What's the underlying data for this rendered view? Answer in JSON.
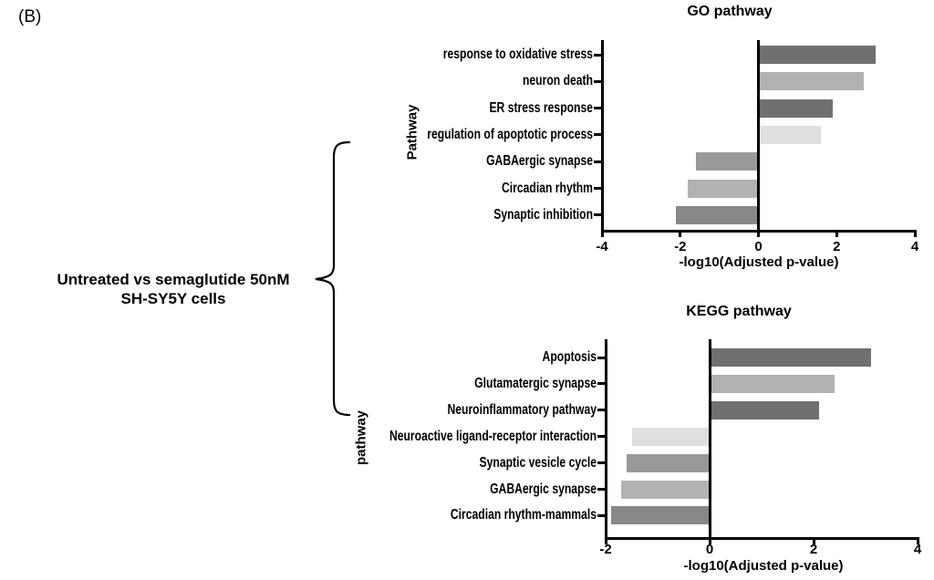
{
  "figure": {
    "panel_label": "(B)",
    "group_label_line1": "Untreated vs semaglutide 50nM",
    "group_label_line2": "SH-SY5Y cells"
  },
  "colors": {
    "axis": "#000000",
    "background": "#ffffff",
    "bar_dark": "#707070",
    "bar_light": "#b2b2b2",
    "bar_very_light": "#dfdfdf",
    "bar_mid": "#999999",
    "bar_mid_dark": "#888888"
  },
  "chart_data": [
    {
      "type": "bar",
      "orientation": "horizontal",
      "title": "GO pathway",
      "xlabel": "-log10(Adjusted p-value)",
      "ylabel": "Pathway",
      "xlim": [
        -4,
        4
      ],
      "xticks": [
        -4,
        -2,
        0,
        2,
        4
      ],
      "xtick_labels": [
        "-4",
        "-2",
        "0",
        "2",
        "4"
      ],
      "grid": false,
      "legend": "none",
      "categories": [
        "response to oxidative stress",
        "neuron death",
        "ER stress response",
        "regulation of apoptotic process",
        "GABAergic synapse",
        "Circadian rhythm",
        "Synaptic inhibition"
      ],
      "values": [
        3.0,
        2.7,
        1.9,
        1.6,
        -1.6,
        -1.8,
        -2.1
      ],
      "bar_colors": [
        "#707070",
        "#b2b2b2",
        "#707070",
        "#dfdfdf",
        "#999999",
        "#b2b2b2",
        "#888888"
      ]
    },
    {
      "type": "bar",
      "orientation": "horizontal",
      "title": "KEGG pathway",
      "xlabel": "-log10(Adjusted p-value)",
      "ylabel": "pathway",
      "xlim": [
        -2,
        4
      ],
      "xticks": [
        -2,
        0,
        2,
        4
      ],
      "xtick_labels": [
        "-2",
        "0",
        "2",
        "4"
      ],
      "grid": false,
      "legend": "none",
      "categories": [
        "Apoptosis",
        "Glutamatergic synapse",
        "Neuroinflammatory pathway",
        "Neuroactive ligand-receptor interaction",
        "Synaptic vesicle cycle",
        "GABAergic synapse",
        "Circadian rhythm-mammals"
      ],
      "values": [
        3.1,
        2.4,
        2.1,
        -1.5,
        -1.6,
        -1.7,
        -1.9
      ],
      "bar_colors": [
        "#707070",
        "#b2b2b2",
        "#707070",
        "#dfdfdf",
        "#999999",
        "#b2b2b2",
        "#888888"
      ]
    }
  ]
}
